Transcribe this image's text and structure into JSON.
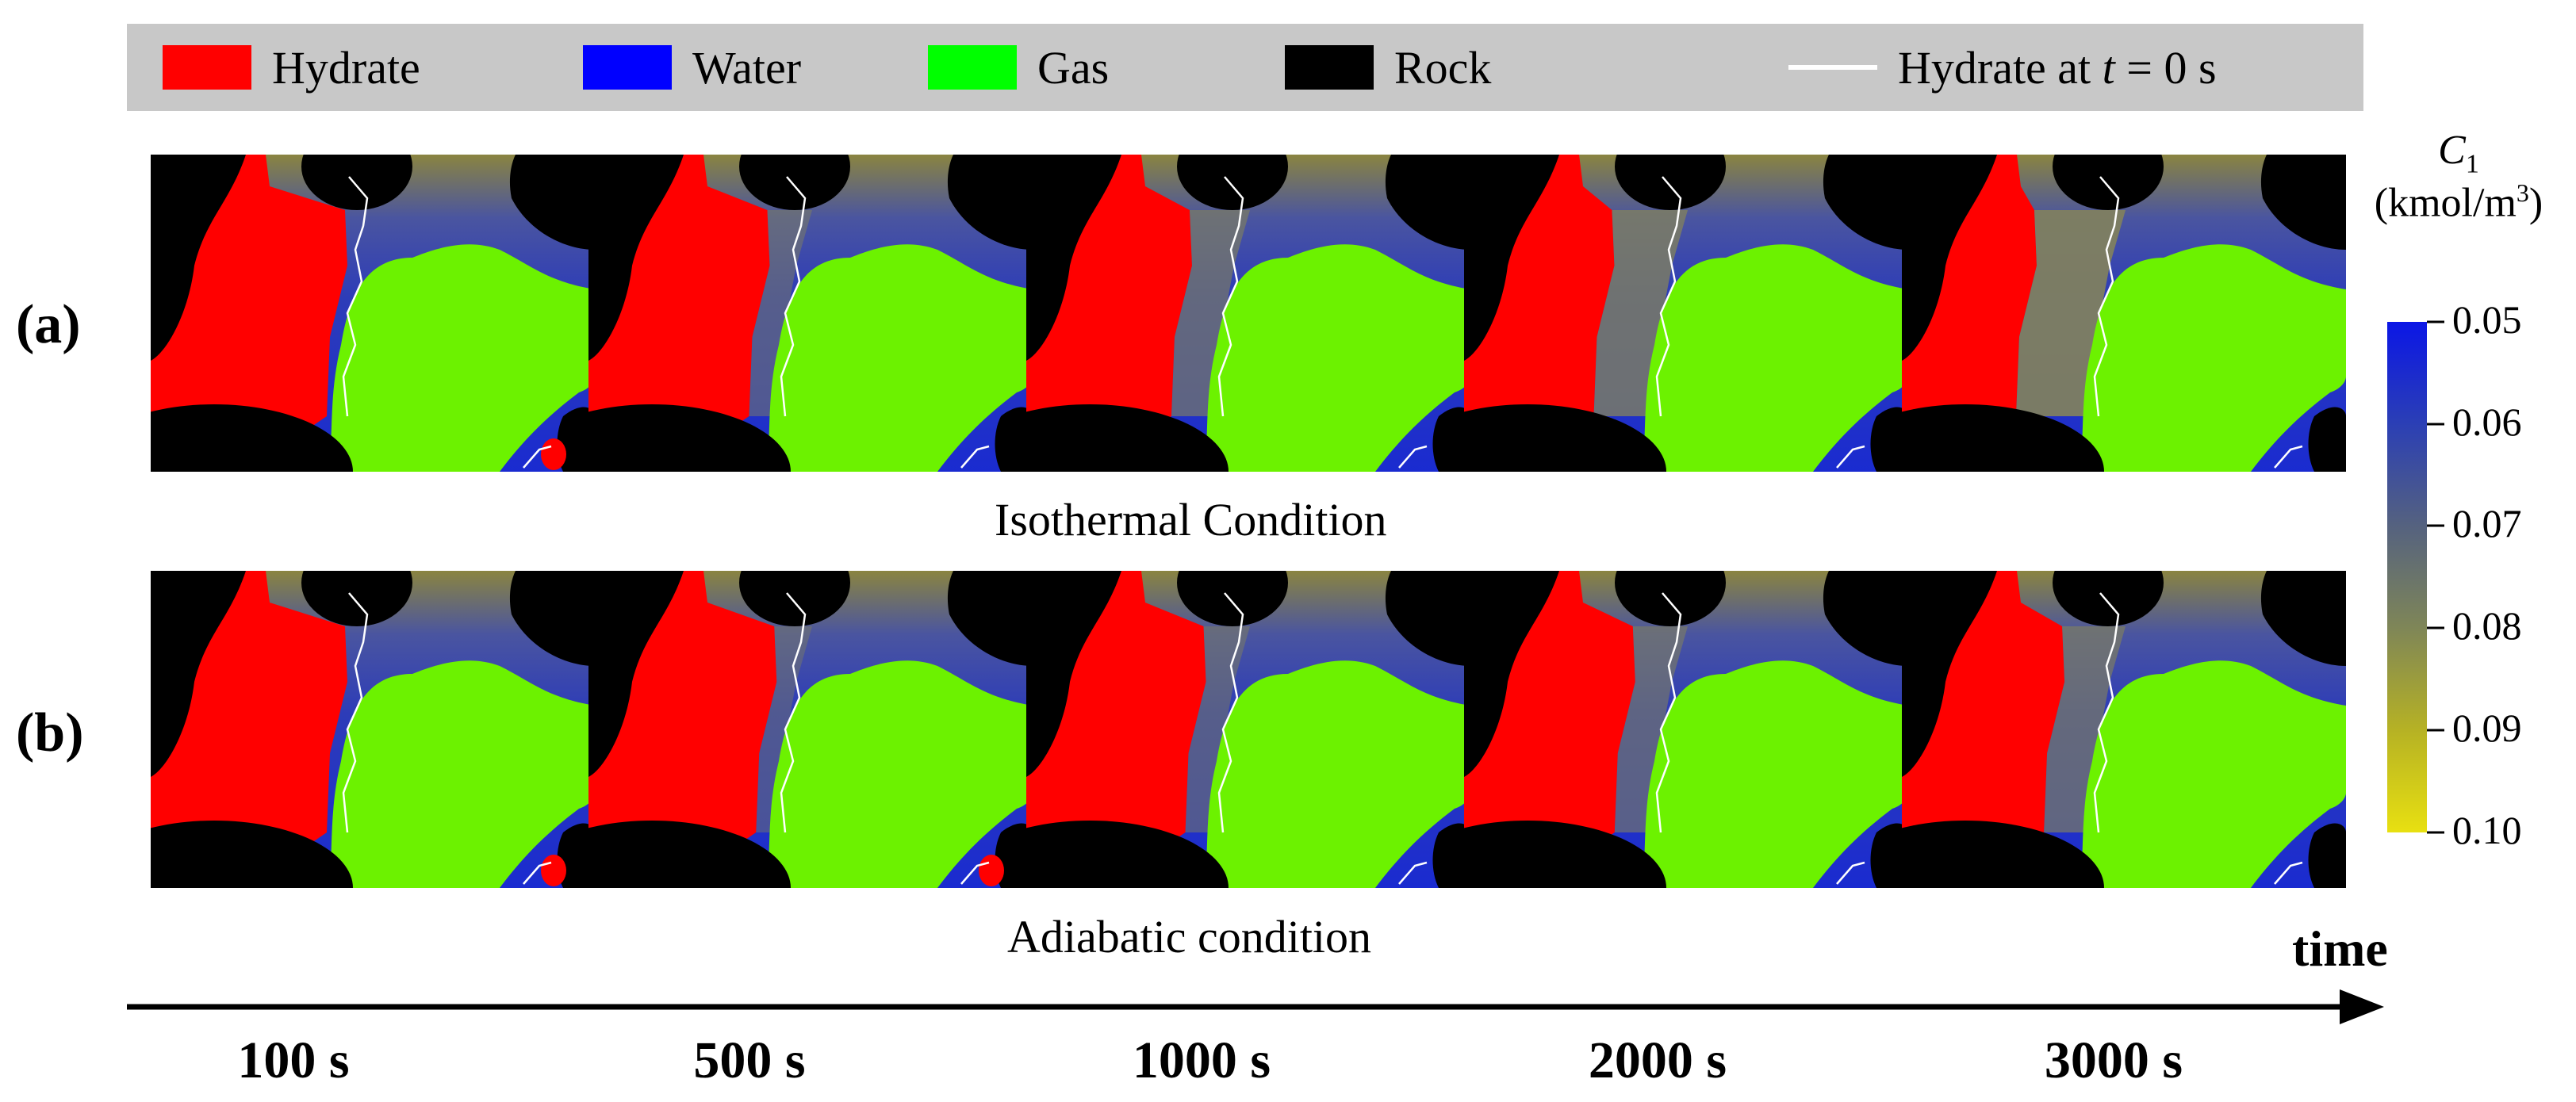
{
  "legend": {
    "items": [
      {
        "label": "Hydrate",
        "color": "#ff0000"
      },
      {
        "label": "Water",
        "color": "#0000ff"
      },
      {
        "label": "Gas",
        "color": "#00ff00"
      },
      {
        "label": "Rock",
        "color": "#000000"
      }
    ],
    "line_label_prefix": "Hydrate at ",
    "line_label_var": "t",
    "line_label_suffix": " = 0 s"
  },
  "rows": [
    {
      "label": "(a)",
      "condition": "Isothermal Condition"
    },
    {
      "label": "(b)",
      "condition": "Adiabatic condition"
    }
  ],
  "time_axis": {
    "label": "time",
    "ticks": [
      "100 s",
      "500 s",
      "1000 s",
      "2000 s",
      "3000 s"
    ]
  },
  "colorbar": {
    "symbol": "C",
    "subscript": "1",
    "unit_prefix": "(kmol/m",
    "unit_power": "3",
    "unit_suffix": ")",
    "ticks": [
      "0.05",
      "0.06",
      "0.07",
      "0.08",
      "0.09",
      "0.10"
    ],
    "colors": [
      "#0b16e6",
      "#2b3fb5",
      "#55627f",
      "#7f8657",
      "#b6b224",
      "#e8e011"
    ]
  }
}
